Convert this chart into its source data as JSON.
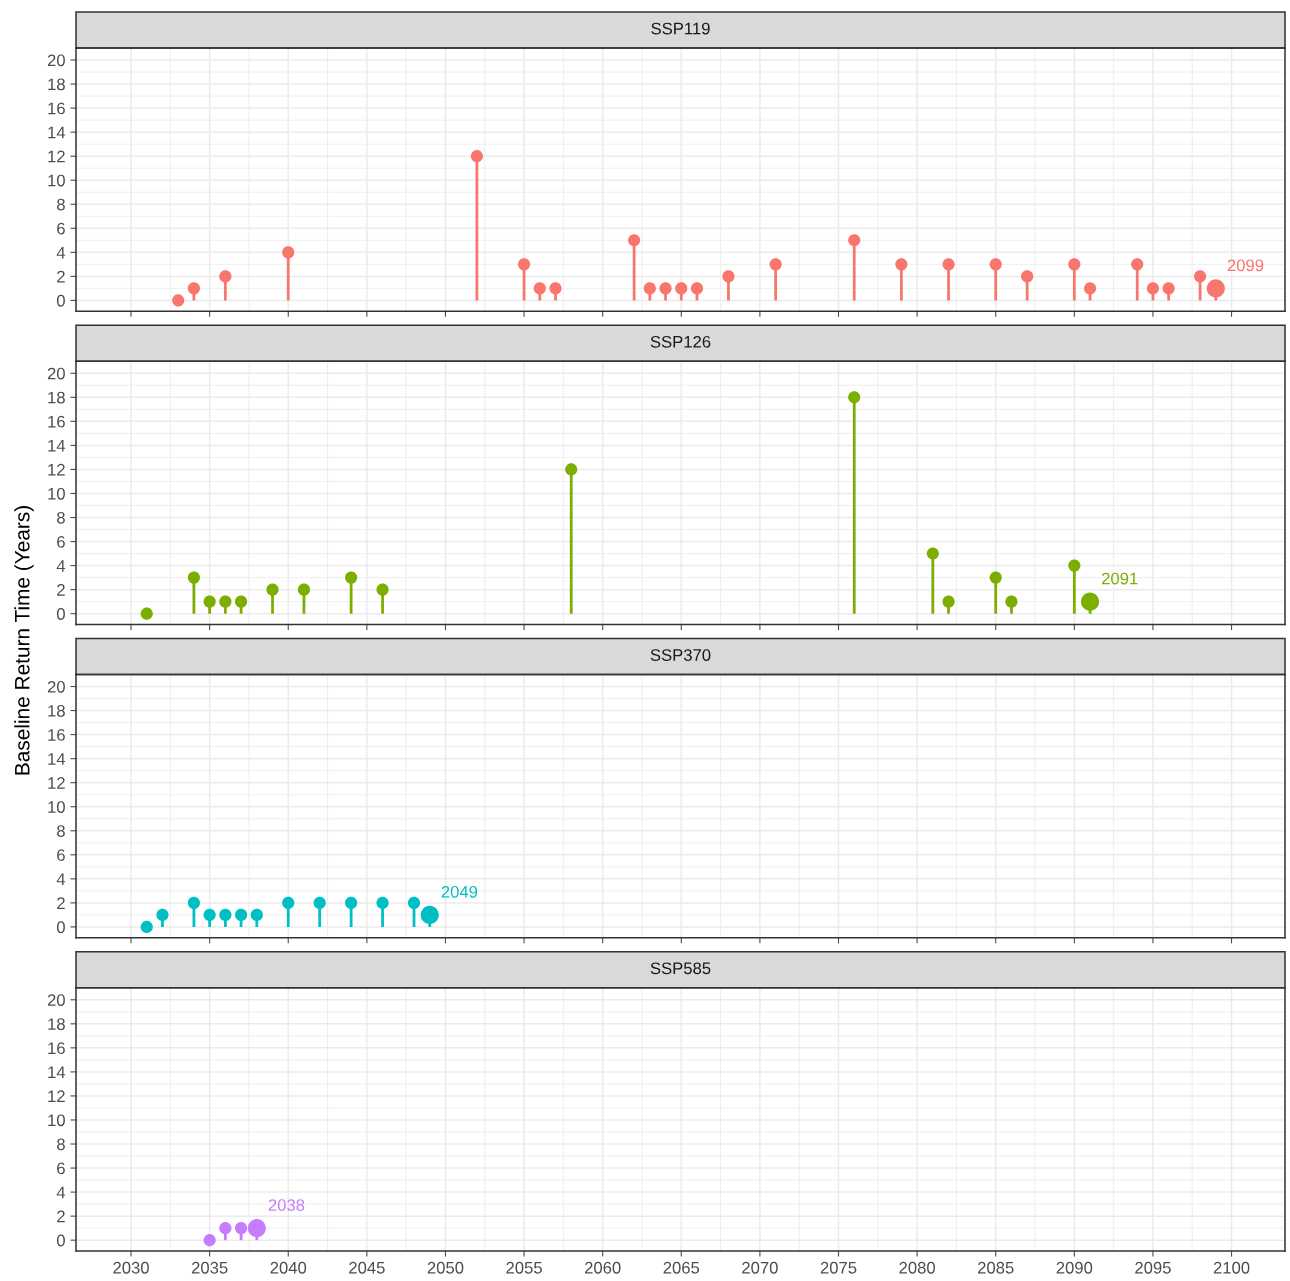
{
  "chart_data": [
    {
      "type": "lollipop",
      "title": "SSP119",
      "color": "#f8766d",
      "marker": "circle",
      "grid": true,
      "tick_labels": "y",
      "x": [
        2033,
        2034,
        2036,
        2040,
        2052,
        2055,
        2056,
        2057,
        2062,
        2063,
        2064,
        2065,
        2066,
        2068,
        2071,
        2076,
        2079,
        2082,
        2085,
        2087,
        2090,
        2091,
        2094,
        2095,
        2096,
        2098,
        2099
      ],
      "values": [
        0,
        1,
        2,
        4,
        12,
        3,
        1,
        1,
        5,
        1,
        1,
        1,
        1,
        2,
        3,
        5,
        3,
        3,
        3,
        2,
        3,
        1,
        3,
        1,
        1,
        2,
        1
      ],
      "sizes": [
        0.45,
        0.45,
        0.45,
        0.45,
        0.45,
        0.45,
        0.45,
        0.45,
        0.45,
        0.45,
        0.45,
        0.45,
        0.45,
        0.45,
        0.45,
        0.45,
        0.45,
        0.45,
        0.45,
        0.45,
        0.45,
        0.45,
        0.45,
        0.45,
        0.45,
        0.45,
        1
      ],
      "annotations": [
        {
          "text": "2099",
          "x": 2099,
          "y": 1
        }
      ],
      "xlim": [
        2026.5,
        2103.4
      ],
      "ylim": [
        -0.9,
        21
      ],
      "xticks": [
        2030,
        2035,
        2040,
        2045,
        2050,
        2055,
        2060,
        2065,
        2070,
        2075,
        2080,
        2085,
        2090,
        2095,
        2100
      ],
      "yticks": [
        0,
        2,
        4,
        6,
        8,
        10,
        12,
        14,
        16,
        18,
        20
      ]
    },
    {
      "type": "lollipop",
      "title": "SSP126",
      "ylabel": "Baseline Return Time (Years)",
      "color": "#7cae00",
      "marker": "circle",
      "grid": true,
      "tick_labels": "y",
      "x": [
        2031,
        2034,
        2035,
        2036,
        2037,
        2039,
        2041,
        2044,
        2046,
        2058,
        2076,
        2081,
        2082,
        2085,
        2086,
        2090,
        2091
      ],
      "values": [
        0,
        3,
        1,
        1,
        1,
        2,
        2,
        3,
        2,
        12,
        18,
        5,
        1,
        3,
        1,
        4,
        1
      ],
      "sizes": [
        0.45,
        0.45,
        0.45,
        0.45,
        0.45,
        0.45,
        0.45,
        0.45,
        0.45,
        0.45,
        0.45,
        0.45,
        0.45,
        0.45,
        0.45,
        0.45,
        1
      ],
      "annotations": [
        {
          "text": "2091",
          "x": 2091,
          "y": 1
        }
      ],
      "xlim": [
        2026.5,
        2103.4
      ],
      "ylim": [
        -0.9,
        21
      ],
      "xticks": [
        2030,
        2035,
        2040,
        2045,
        2050,
        2055,
        2060,
        2065,
        2070,
        2075,
        2080,
        2085,
        2090,
        2095,
        2100
      ],
      "yticks": [
        0,
        2,
        4,
        6,
        8,
        10,
        12,
        14,
        16,
        18,
        20
      ]
    },
    {
      "type": "lollipop",
      "title": "SSP370",
      "color": "#00bfc4",
      "marker": "circle",
      "grid": true,
      "tick_labels": "y",
      "x": [
        2031,
        2032,
        2034,
        2035,
        2036,
        2037,
        2038,
        2040,
        2042,
        2044,
        2046,
        2048,
        2049
      ],
      "values": [
        0,
        1,
        2,
        1,
        1,
        1,
        1,
        2,
        2,
        2,
        2,
        2,
        1
      ],
      "sizes": [
        0.45,
        0.45,
        0.45,
        0.45,
        0.45,
        0.45,
        0.45,
        0.45,
        0.45,
        0.45,
        0.45,
        0.45,
        1
      ],
      "annotations": [
        {
          "text": "2049",
          "x": 2049,
          "y": 1
        }
      ],
      "xlim": [
        2026.5,
        2103.4
      ],
      "ylim": [
        -0.9,
        21
      ],
      "xticks": [
        2030,
        2035,
        2040,
        2045,
        2050,
        2055,
        2060,
        2065,
        2070,
        2075,
        2080,
        2085,
        2090,
        2095,
        2100
      ],
      "yticks": [
        0,
        2,
        4,
        6,
        8,
        10,
        12,
        14,
        16,
        18,
        20
      ]
    },
    {
      "type": "lollipop",
      "title": "SSP585",
      "color": "#c77cff",
      "marker": "circle",
      "grid": true,
      "x": [
        2035,
        2036,
        2037,
        2038
      ],
      "values": [
        0,
        1,
        1,
        1
      ],
      "sizes": [
        0.45,
        0.45,
        0.45,
        1
      ],
      "annotations": [
        {
          "text": "2038",
          "x": 2038,
          "y": 1
        }
      ],
      "xlim": [
        2026.5,
        2103.4
      ],
      "ylim": [
        -0.9,
        21
      ],
      "xticks": [
        2030,
        2035,
        2040,
        2045,
        2050,
        2055,
        2060,
        2065,
        2070,
        2075,
        2080,
        2085,
        2090,
        2095,
        2100
      ],
      "yticks": [
        0,
        2,
        4,
        6,
        8,
        10,
        12,
        14,
        16,
        18,
        20
      ]
    }
  ]
}
